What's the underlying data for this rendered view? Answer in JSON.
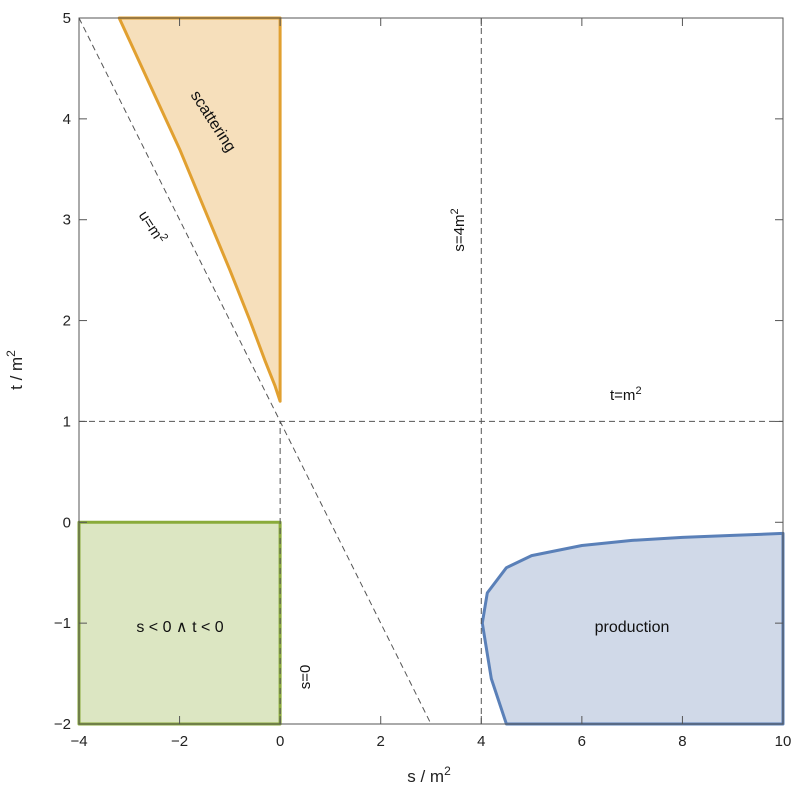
{
  "chart_data": {
    "type": "area",
    "xlabel": "s / m",
    "xlabel_sup": "2",
    "ylabel": "t / m",
    "ylabel_sup": "2",
    "xlim": [
      -4,
      10
    ],
    "ylim": [
      -2,
      5
    ],
    "x_ticks": [
      {
        "value": -4,
        "label": "−4"
      },
      {
        "value": -2,
        "label": "−2"
      },
      {
        "value": 0,
        "label": "0"
      },
      {
        "value": 2,
        "label": "2"
      },
      {
        "value": 4,
        "label": "4"
      },
      {
        "value": 6,
        "label": "6"
      },
      {
        "value": 8,
        "label": "8"
      },
      {
        "value": 10,
        "label": "10"
      }
    ],
    "y_ticks": [
      {
        "value": -2,
        "label": "−2"
      },
      {
        "value": -1,
        "label": "−1"
      },
      {
        "value": 0,
        "label": "0"
      },
      {
        "value": 1,
        "label": "1"
      },
      {
        "value": 2,
        "label": "2"
      },
      {
        "value": 3,
        "label": "3"
      },
      {
        "value": 4,
        "label": "4"
      },
      {
        "value": 5,
        "label": "5"
      }
    ],
    "reference_lines": [
      {
        "name": "t=m2",
        "from": [
          -4,
          1
        ],
        "to": [
          10,
          1
        ]
      },
      {
        "name": "s=0",
        "from": [
          0,
          -2
        ],
        "to": [
          0,
          1
        ]
      },
      {
        "name": "s=4m2",
        "from": [
          4,
          -2
        ],
        "to": [
          4,
          5
        ]
      },
      {
        "name": "u=m2",
        "from": [
          -4,
          5
        ],
        "to": [
          3,
          -2
        ]
      }
    ],
    "regions": [
      {
        "name": "scattering",
        "fill": "#f6dfbb",
        "stroke": "#e1a030",
        "boundary": [
          [
            0,
            1.2
          ],
          [
            -0.1,
            1.35
          ],
          [
            -0.3,
            1.6
          ],
          [
            -0.6,
            2.0
          ],
          [
            -1.0,
            2.5
          ],
          [
            -1.5,
            3.1
          ],
          [
            -2.0,
            3.7
          ],
          [
            -2.6,
            4.35
          ],
          [
            -3.2,
            5.0
          ],
          [
            0,
            5.0
          ],
          [
            0,
            1.2
          ]
        ]
      },
      {
        "name": "s < 0 ∧ t < 0",
        "fill": "#dce6c2",
        "stroke": "#8aab3a",
        "boundary": [
          [
            -4,
            -2
          ],
          [
            -4,
            0
          ],
          [
            0,
            0
          ],
          [
            0,
            -2
          ],
          [
            -4,
            -2
          ]
        ]
      },
      {
        "name": "production",
        "fill": "#d0d9e8",
        "stroke": "#5a80b8",
        "boundary": [
          [
            4.5,
            -2
          ],
          [
            4.2,
            -1.55
          ],
          [
            4.02,
            -1.0
          ],
          [
            4.12,
            -0.7
          ],
          [
            4.5,
            -0.45
          ],
          [
            5.0,
            -0.33
          ],
          [
            6.0,
            -0.23
          ],
          [
            7.0,
            -0.18
          ],
          [
            8.0,
            -0.15
          ],
          [
            9.0,
            -0.13
          ],
          [
            10.0,
            -0.11
          ],
          [
            10.0,
            -2
          ],
          [
            4.5,
            -2
          ]
        ]
      }
    ],
    "annotations": {
      "scattering": "scattering",
      "u_line_prefix": "u=m",
      "u_line_sup": "2",
      "s4_line_prefix": "s=4m",
      "s4_line_sup": "2",
      "t_line_prefix": "t=m",
      "t_line_sup": "2",
      "s0_line": "s=0",
      "negative_region": "s < 0 ∧ t < 0",
      "production": "production"
    },
    "grid": false,
    "legend": "none"
  }
}
